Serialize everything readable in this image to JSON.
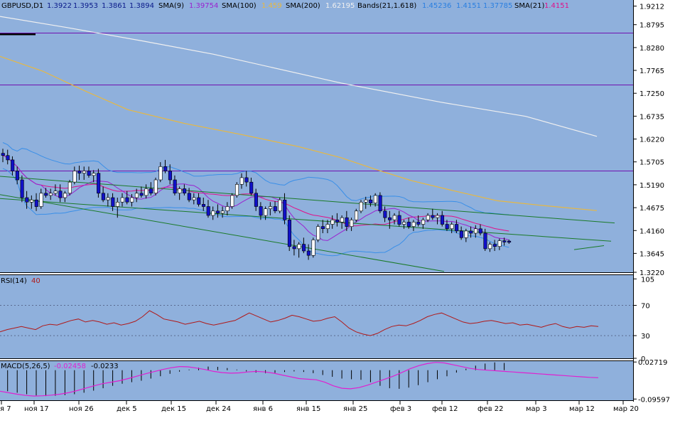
{
  "header": {
    "symbol": "GBPUSD,D1",
    "open": "1.3922",
    "high": "1.3953",
    "low": "1.3861",
    "close": "1.3894",
    "sma9_label": "SMA(9)",
    "sma9_value": "1.39754",
    "sma100_label": "SMA(100)",
    "sma100_value": "1.459",
    "sma200_label": "SMA(200)",
    "sma200_value": "1.62195",
    "bands_label": "Bands(21,1.618)",
    "bands_upper": "1.45236",
    "bands_mid": "1.4151",
    "bands_lower": "1.37785",
    "sma21_label": "SMA(21)",
    "sma21_value": "1.4151"
  },
  "rsi": {
    "label": "RSI(14)",
    "value": "40",
    "ticks": [
      "105",
      "70",
      "30",
      "0"
    ]
  },
  "macd": {
    "label": "MACD(5,26,5)",
    "value1": "-0.02458",
    "value2": "-0.0233",
    "ticks": [
      "0.02719",
      "-0.09597"
    ]
  },
  "colors": {
    "background": "#8fb0dc",
    "candle_up": "#ffffff",
    "candle_down": "#1010c8",
    "sma9": "#9a22d0",
    "sma21": "#e0108a",
    "sma100": "#e8b840",
    "sma200": "#f0f0f0",
    "bands": "#3a8fe8",
    "trend": "#1a7a28",
    "level": "#7010b0",
    "rsi": "#b01818",
    "macd_signal": "#e020d0"
  },
  "chart_data": {
    "type": "candlestick",
    "price_axis_ticks": [
      "1.9212",
      "1.8795",
      "1.8280",
      "1.7765",
      "1.7250",
      "1.6735",
      "1.6220",
      "1.5705",
      "1.5190",
      "1.4675",
      "1.4160",
      "1.3645",
      "1.3220"
    ],
    "price_range": [
      1.322,
      1.935
    ],
    "time_axis_labels": [
      "я 7",
      "ноя 17",
      "ноя 26",
      "дек 5",
      "дек 15",
      "дек 24",
      "янв 6",
      "янв 15",
      "янв 25",
      "фев 3",
      "фев 12",
      "фев 22",
      "мар 3",
      "мар 12",
      "мар 20"
    ],
    "horizontal_levels": [
      1.8615,
      1.7453,
      1.5515
    ],
    "candles": [
      [
        1.59,
        1.6,
        1.57,
        1.585
      ],
      [
        1.585,
        1.598,
        1.565,
        1.575
      ],
      [
        1.575,
        1.583,
        1.54,
        1.55
      ],
      [
        1.55,
        1.56,
        1.52,
        1.53
      ],
      [
        1.53,
        1.54,
        1.48,
        1.49
      ],
      [
        1.49,
        1.505,
        1.465,
        1.48
      ],
      [
        1.48,
        1.495,
        1.465,
        1.485
      ],
      [
        1.485,
        1.5,
        1.46,
        1.47
      ],
      [
        1.47,
        1.51,
        1.465,
        1.5
      ],
      [
        1.5,
        1.512,
        1.49,
        1.495
      ],
      [
        1.495,
        1.51,
        1.485,
        1.5
      ],
      [
        1.5,
        1.52,
        1.495,
        1.505
      ],
      [
        1.505,
        1.52,
        1.48,
        1.49
      ],
      [
        1.49,
        1.505,
        1.48,
        1.5
      ],
      [
        1.5,
        1.53,
        1.495,
        1.525
      ],
      [
        1.525,
        1.56,
        1.52,
        1.55
      ],
      [
        1.55,
        1.562,
        1.53,
        1.545
      ],
      [
        1.545,
        1.56,
        1.53,
        1.55
      ],
      [
        1.55,
        1.56,
        1.535,
        1.54
      ],
      [
        1.54,
        1.552,
        1.525,
        1.545
      ],
      [
        1.545,
        1.555,
        1.49,
        1.5
      ],
      [
        1.5,
        1.515,
        1.48,
        1.485
      ],
      [
        1.485,
        1.5,
        1.47,
        1.49
      ],
      [
        1.49,
        1.5,
        1.46,
        1.47
      ],
      [
        1.47,
        1.49,
        1.445,
        1.48
      ],
      [
        1.48,
        1.5,
        1.47,
        1.49
      ],
      [
        1.49,
        1.505,
        1.475,
        1.48
      ],
      [
        1.48,
        1.498,
        1.47,
        1.49
      ],
      [
        1.49,
        1.51,
        1.48,
        1.5
      ],
      [
        1.5,
        1.515,
        1.49,
        1.495
      ],
      [
        1.495,
        1.52,
        1.488,
        1.51
      ],
      [
        1.51,
        1.525,
        1.495,
        1.5
      ],
      [
        1.5,
        1.535,
        1.495,
        1.53
      ],
      [
        1.53,
        1.57,
        1.525,
        1.56
      ],
      [
        1.56,
        1.575,
        1.545,
        1.55
      ],
      [
        1.55,
        1.565,
        1.52,
        1.53
      ],
      [
        1.53,
        1.54,
        1.495,
        1.5
      ],
      [
        1.5,
        1.515,
        1.485,
        1.51
      ],
      [
        1.51,
        1.52,
        1.495,
        1.5
      ],
      [
        1.5,
        1.512,
        1.48,
        1.485
      ],
      [
        1.485,
        1.5,
        1.475,
        1.49
      ],
      [
        1.49,
        1.5,
        1.47,
        1.475
      ],
      [
        1.475,
        1.49,
        1.46,
        1.47
      ],
      [
        1.47,
        1.485,
        1.445,
        1.45
      ],
      [
        1.45,
        1.47,
        1.44,
        1.46
      ],
      [
        1.46,
        1.475,
        1.445,
        1.455
      ],
      [
        1.455,
        1.47,
        1.445,
        1.46
      ],
      [
        1.46,
        1.48,
        1.45,
        1.47
      ],
      [
        1.47,
        1.5,
        1.465,
        1.495
      ],
      [
        1.495,
        1.525,
        1.49,
        1.52
      ],
      [
        1.52,
        1.545,
        1.51,
        1.535
      ],
      [
        1.535,
        1.55,
        1.515,
        1.525
      ],
      [
        1.525,
        1.535,
        1.495,
        1.5
      ],
      [
        1.5,
        1.51,
        1.46,
        1.47
      ],
      [
        1.47,
        1.48,
        1.44,
        1.45
      ],
      [
        1.45,
        1.47,
        1.44,
        1.465
      ],
      [
        1.465,
        1.48,
        1.45,
        1.47
      ],
      [
        1.47,
        1.482,
        1.455,
        1.46
      ],
      [
        1.46,
        1.49,
        1.455,
        1.485
      ],
      [
        1.485,
        1.5,
        1.43,
        1.44
      ],
      [
        1.44,
        1.45,
        1.37,
        1.38
      ],
      [
        1.38,
        1.395,
        1.36,
        1.375
      ],
      [
        1.375,
        1.39,
        1.355,
        1.385
      ],
      [
        1.385,
        1.4,
        1.365,
        1.37
      ],
      [
        1.37,
        1.385,
        1.35,
        1.36
      ],
      [
        1.36,
        1.4,
        1.355,
        1.395
      ],
      [
        1.395,
        1.43,
        1.39,
        1.425
      ],
      [
        1.425,
        1.44,
        1.41,
        1.42
      ],
      [
        1.42,
        1.44,
        1.41,
        1.43
      ],
      [
        1.43,
        1.45,
        1.42,
        1.44
      ],
      [
        1.44,
        1.455,
        1.425,
        1.435
      ],
      [
        1.435,
        1.45,
        1.42,
        1.445
      ],
      [
        1.445,
        1.46,
        1.415,
        1.425
      ],
      [
        1.425,
        1.445,
        1.415,
        1.44
      ],
      [
        1.44,
        1.465,
        1.435,
        1.46
      ],
      [
        1.46,
        1.485,
        1.455,
        1.48
      ],
      [
        1.48,
        1.492,
        1.465,
        1.485
      ],
      [
        1.485,
        1.495,
        1.47,
        1.478
      ],
      [
        1.478,
        1.5,
        1.47,
        1.495
      ],
      [
        1.495,
        1.502,
        1.455,
        1.46
      ],
      [
        1.46,
        1.47,
        1.435,
        1.445
      ],
      [
        1.445,
        1.46,
        1.42,
        1.44
      ],
      [
        1.44,
        1.455,
        1.43,
        1.45
      ],
      [
        1.45,
        1.46,
        1.425,
        1.43
      ],
      [
        1.43,
        1.44,
        1.42,
        1.435
      ],
      [
        1.435,
        1.445,
        1.42,
        1.425
      ],
      [
        1.425,
        1.44,
        1.415,
        1.435
      ],
      [
        1.435,
        1.45,
        1.425,
        1.43
      ],
      [
        1.43,
        1.445,
        1.42,
        1.44
      ],
      [
        1.44,
        1.455,
        1.435,
        1.45
      ],
      [
        1.45,
        1.465,
        1.44,
        1.445
      ],
      [
        1.445,
        1.455,
        1.43,
        1.45
      ],
      [
        1.45,
        1.46,
        1.425,
        1.43
      ],
      [
        1.43,
        1.44,
        1.415,
        1.42
      ],
      [
        1.42,
        1.435,
        1.41,
        1.43
      ],
      [
        1.43,
        1.44,
        1.41,
        1.415
      ],
      [
        1.415,
        1.425,
        1.395,
        1.4
      ],
      [
        1.4,
        1.42,
        1.39,
        1.415
      ],
      [
        1.415,
        1.425,
        1.4,
        1.41
      ],
      [
        1.41,
        1.428,
        1.4,
        1.42
      ],
      [
        1.42,
        1.43,
        1.405,
        1.41
      ],
      [
        1.41,
        1.42,
        1.37,
        1.375
      ],
      [
        1.375,
        1.39,
        1.368,
        1.385
      ],
      [
        1.385,
        1.395,
        1.37,
        1.38
      ],
      [
        1.38,
        1.398,
        1.372,
        1.393
      ],
      [
        1.393,
        1.4,
        1.382,
        1.39
      ],
      [
        1.3922,
        1.3953,
        1.3861,
        1.3894
      ]
    ],
    "sma200": [
      [
        0,
        1.898
      ],
      [
        94,
        1.873
      ],
      [
        200,
        1.843
      ],
      [
        300,
        1.813
      ],
      [
        480,
        1.748
      ],
      [
        620,
        1.705
      ],
      [
        740,
        1.673
      ],
      [
        840,
        1.628
      ]
    ],
    "sma100": [
      [
        0,
        1.808
      ],
      [
        60,
        1.775
      ],
      [
        120,
        1.73
      ],
      [
        180,
        1.688
      ],
      [
        260,
        1.657
      ],
      [
        340,
        1.632
      ],
      [
        420,
        1.605
      ],
      [
        480,
        1.58
      ],
      [
        530,
        1.553
      ],
      [
        580,
        1.528
      ],
      [
        640,
        1.505
      ],
      [
        700,
        1.483
      ],
      [
        760,
        1.473
      ],
      [
        840,
        1.461
      ]
    ],
    "trendlines": [
      [
        [
          0,
          1.538
        ],
        [
          865,
          1.433
        ]
      ],
      [
        [
          0,
          1.488
        ],
        [
          860,
          1.392
        ]
      ],
      [
        [
          0,
          1.497
        ],
        [
          625,
          1.324
        ]
      ],
      [
        [
          808,
          1.373
        ],
        [
          850,
          1.382
        ]
      ]
    ],
    "rsi_series": [
      35,
      38,
      40,
      42,
      40,
      38,
      43,
      45,
      44,
      47,
      50,
      52,
      48,
      50,
      48,
      45,
      47,
      44,
      46,
      49,
      55,
      63,
      58,
      52,
      50,
      48,
      45,
      47,
      49,
      46,
      44,
      46,
      48,
      50,
      55,
      60,
      56,
      52,
      48,
      50,
      53,
      57,
      55,
      52,
      49,
      50,
      53,
      55,
      48,
      40,
      35,
      32,
      30,
      33,
      38,
      42,
      44,
      43,
      46,
      50,
      55,
      58,
      60,
      56,
      52,
      48,
      46,
      47,
      49,
      50,
      48,
      46,
      47,
      44,
      45,
      43,
      41,
      44,
      46,
      42,
      40,
      42,
      41,
      43,
      42
    ],
    "macd_series": [
      -0.07,
      -0.075,
      -0.08,
      -0.084,
      -0.086,
      -0.085,
      -0.083,
      -0.08,
      -0.075,
      -0.068,
      -0.06,
      -0.052,
      -0.045,
      -0.04,
      -0.035,
      -0.028,
      -0.02,
      -0.012,
      -0.005,
      0.002,
      0.008,
      0.012,
      0.011,
      0.007,
      0.002,
      -0.004,
      -0.008,
      -0.01,
      -0.009,
      -0.006,
      -0.004,
      -0.006,
      -0.01,
      -0.016,
      -0.022,
      -0.028,
      -0.03,
      -0.032,
      -0.04,
      -0.052,
      -0.06,
      -0.062,
      -0.058,
      -0.05,
      -0.04,
      -0.03,
      -0.02,
      -0.008,
      0.005,
      0.015,
      0.022,
      0.026,
      0.024,
      0.018,
      0.012,
      0.006,
      0.002,
      0.0,
      -0.002,
      -0.004,
      -0.006,
      -0.008,
      -0.01,
      -0.012,
      -0.014,
      -0.016,
      -0.018,
      -0.02,
      -0.022,
      -0.024,
      -0.025
    ]
  }
}
